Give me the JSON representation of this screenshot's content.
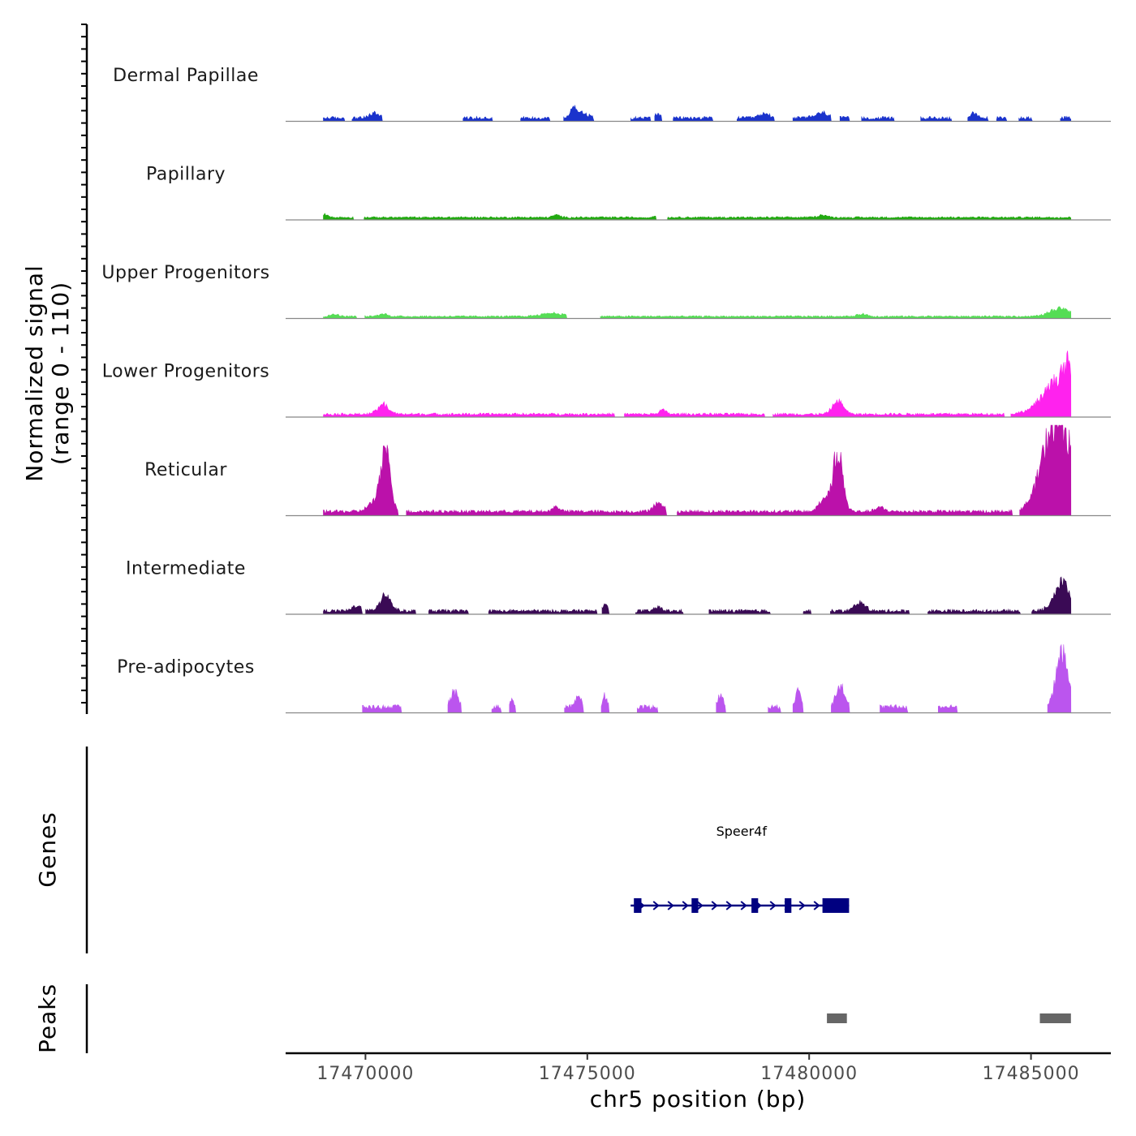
{
  "chart_data": {
    "type": "area",
    "title": "",
    "y_axis_title_line1": "Normalized signal",
    "y_axis_title_line2": "(range 0 - 110)",
    "xlabel": "chr5 position (bp)",
    "xlim": [
      17468200,
      17486800
    ],
    "x_ticks": [
      {
        "value": 17470000,
        "label": "17470000"
      },
      {
        "value": 17475000,
        "label": "17475000"
      },
      {
        "value": 17480000,
        "label": "17480000"
      },
      {
        "value": 17485000,
        "label": "17485000"
      }
    ],
    "signal_range": [
      0,
      110
    ],
    "coverage_span": [
      17469050,
      17485900
    ],
    "tracks": [
      {
        "name": "Dermal Papillae",
        "color": "#1a33cc",
        "baseline": 2,
        "noise": 4,
        "gap_prob": 0.35,
        "peaks": [
          [
            17474700,
            12,
            80
          ],
          [
            17474900,
            6,
            120
          ],
          [
            17480300,
            6,
            160
          ],
          [
            17479000,
            5,
            120
          ],
          [
            17470200,
            6,
            100
          ],
          [
            17476600,
            5,
            80
          ],
          [
            17483700,
            5,
            80
          ]
        ]
      },
      {
        "name": "Papillary",
        "color": "#22aa11",
        "baseline": 2,
        "noise": 2,
        "gap_prob": 0.05,
        "peaks": [
          [
            17469100,
            4,
            60
          ],
          [
            17480300,
            3,
            100
          ],
          [
            17476600,
            3,
            80
          ],
          [
            17474300,
            3,
            80
          ]
        ]
      },
      {
        "name": "Upper Progenitors",
        "color": "#55dd55",
        "baseline": 1.5,
        "noise": 2,
        "gap_prob": 0.05,
        "peaks": [
          [
            17485650,
            10,
            220
          ],
          [
            17469300,
            3,
            80
          ],
          [
            17474200,
            4,
            250
          ],
          [
            17470400,
            3,
            100
          ],
          [
            17481200,
            3,
            100
          ]
        ]
      },
      {
        "name": "Lower Progenitors",
        "color": "#ff22ee",
        "baseline": 2,
        "noise": 3,
        "gap_prob": 0.05,
        "peaks": [
          [
            17470400,
            12,
            120
          ],
          [
            17480650,
            16,
            120
          ],
          [
            17485700,
            44,
            380
          ],
          [
            17485850,
            20,
            100
          ],
          [
            17476700,
            5,
            80
          ]
        ]
      },
      {
        "name": "Reticular",
        "color": "#bb11aa",
        "baseline": 3,
        "noise": 4,
        "gap_prob": 0.05,
        "peaks": [
          [
            17470450,
            72,
            110
          ],
          [
            17480650,
            72,
            110
          ],
          [
            17480350,
            16,
            120
          ],
          [
            17470150,
            10,
            120
          ],
          [
            17485650,
            100,
            300
          ],
          [
            17485350,
            25,
            250
          ],
          [
            17476600,
            9,
            120
          ],
          [
            17474300,
            6,
            80
          ],
          [
            17481600,
            5,
            100
          ]
        ]
      },
      {
        "name": "Intermediate",
        "color": "#3a0a55",
        "baseline": 2,
        "noise": 4,
        "gap_prob": 0.25,
        "peaks": [
          [
            17470450,
            20,
            120
          ],
          [
            17469800,
            6,
            100
          ],
          [
            17481150,
            10,
            120
          ],
          [
            17485700,
            34,
            180
          ],
          [
            17476600,
            5,
            80
          ],
          [
            17475400,
            8,
            60
          ]
        ]
      },
      {
        "name": "Pre-adipocytes",
        "color": "#bb55ee",
        "baseline": 4,
        "noise": 6,
        "gap_prob": 0.78,
        "peaks": [
          [
            17485700,
            70,
            130
          ],
          [
            17480700,
            26,
            100
          ],
          [
            17472000,
            18,
            80
          ],
          [
            17479750,
            20,
            60
          ],
          [
            17478000,
            14,
            60
          ],
          [
            17474800,
            14,
            60
          ],
          [
            17475400,
            14,
            50
          ],
          [
            17473300,
            8,
            50
          ]
        ]
      }
    ],
    "genes": [
      {
        "name": "Speer4f",
        "start": 17476050,
        "end": 17480900,
        "strand": "+",
        "exons": [
          [
            17476050,
            17476220
          ],
          [
            17477350,
            17477500
          ],
          [
            17478700,
            17478850
          ],
          [
            17479450,
            17479600
          ],
          [
            17480300,
            17480900
          ]
        ]
      }
    ],
    "peaks_track": [
      {
        "start": 17480400,
        "end": 17480850
      },
      {
        "start": 17485200,
        "end": 17485900
      }
    ],
    "panel_titles": {
      "genes": "Genes",
      "peaks": "Peaks"
    }
  }
}
